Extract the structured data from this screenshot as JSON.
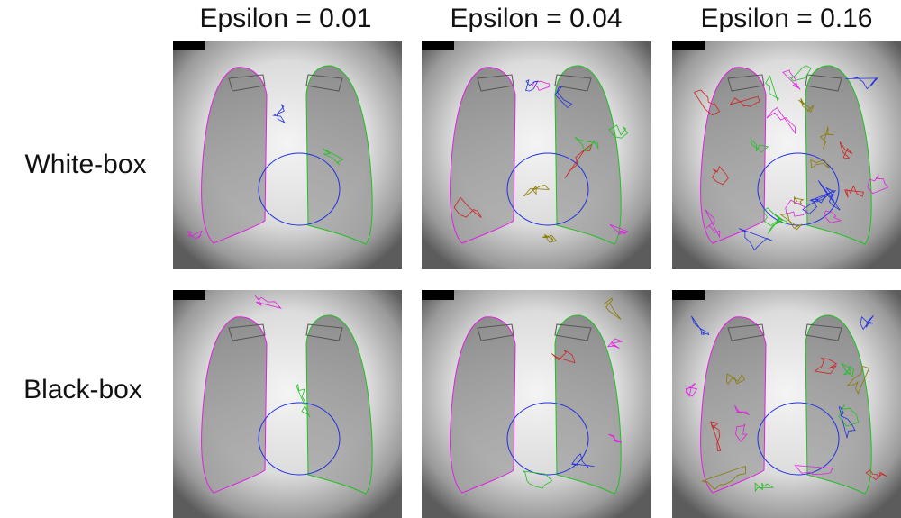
{
  "columns": [
    "Epsilon = 0.01",
    "Epsilon = 0.04",
    "Epsilon = 0.16"
  ],
  "rows": [
    "White-box",
    "Black-box"
  ]
}
